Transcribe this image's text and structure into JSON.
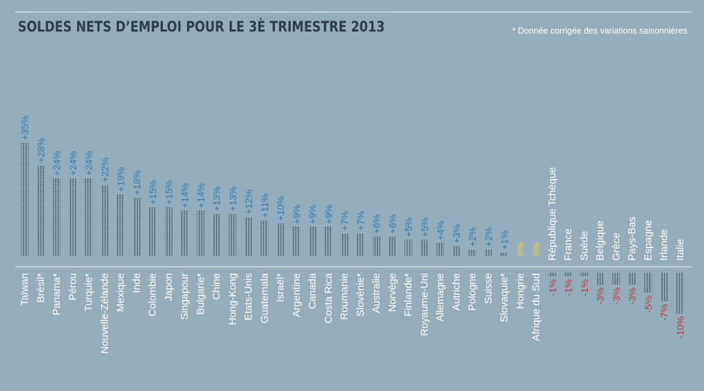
{
  "header": {
    "title": "SOLDES NETS D’EMPLOI POUR LE 3È TRIMESTRE 2013",
    "note": "* Donnée corrigée des variations saisonnières"
  },
  "colors": {
    "background": "#95aebe",
    "positive": "#2f7fb7",
    "zero": "#d7c35a",
    "negative": "#c23a45",
    "label": "#ffffff",
    "dots": "#263440",
    "title": "#2c3d4d"
  },
  "chart_data": {
    "type": "bar",
    "title": "SOLDES NETS D’EMPLOI POUR LE 3È TRIMESTRE 2013",
    "categories": [
      "Taïwan",
      "Brésil*",
      "Panama*",
      "Pérou",
      "Turquie*",
      "Nouvelle-Zélande",
      "Mexique",
      "Inde",
      "Colombie",
      "Japon",
      "Singapour",
      "Bulgarie*",
      "Chine",
      "Hong-Kong",
      "Etats-Unis",
      "Guatemala",
      "Israël*",
      "Argentine",
      "Canada",
      "Costa Rica",
      "Roumanie",
      "Slovénie*",
      "Australie",
      "Norvège",
      "Finlande*",
      "Royaume-Uni",
      "Allemagne",
      "Autriche",
      "Pologne",
      "Suisse",
      "Slovaquie*",
      "Hongrie",
      "Afrique du Sud",
      "République Tchèque",
      "France",
      "Suède",
      "Belgique",
      "Grèce",
      "Pays-Bas",
      "Espagne",
      "Irlande",
      "Italie"
    ],
    "values": [
      35,
      28,
      24,
      24,
      24,
      22,
      19,
      18,
      15,
      15,
      14,
      14,
      13,
      13,
      12,
      11,
      10,
      9,
      9,
      9,
      7,
      7,
      6,
      6,
      5,
      5,
      4,
      3,
      2,
      2,
      1,
      0,
      0,
      -1,
      -1,
      -1,
      -3,
      -3,
      -3,
      -5,
      -7,
      -10
    ],
    "value_labels": [
      "+35%",
      "+28%",
      "+24%",
      "+24%",
      "+24%",
      "+22%",
      "+19%",
      "+18%",
      "+15%",
      "+15%",
      "+14%",
      "+14%",
      "+13%",
      "+13%",
      "+12%",
      "+11%",
      "+10%",
      "+9%",
      "+9%",
      "+9%",
      "+7%",
      "+7%",
      "+6%",
      "+6%",
      "+5%",
      "+5%",
      "+4%",
      "+3%",
      "+2%",
      "+2%",
      "+1%",
      "0%",
      "0%",
      "-1%",
      "-1%",
      "-1%",
      "-3%",
      "-3%",
      "-3%",
      "-5%",
      "-7%",
      "-10%"
    ],
    "xlabel": "",
    "ylabel": ""
  }
}
